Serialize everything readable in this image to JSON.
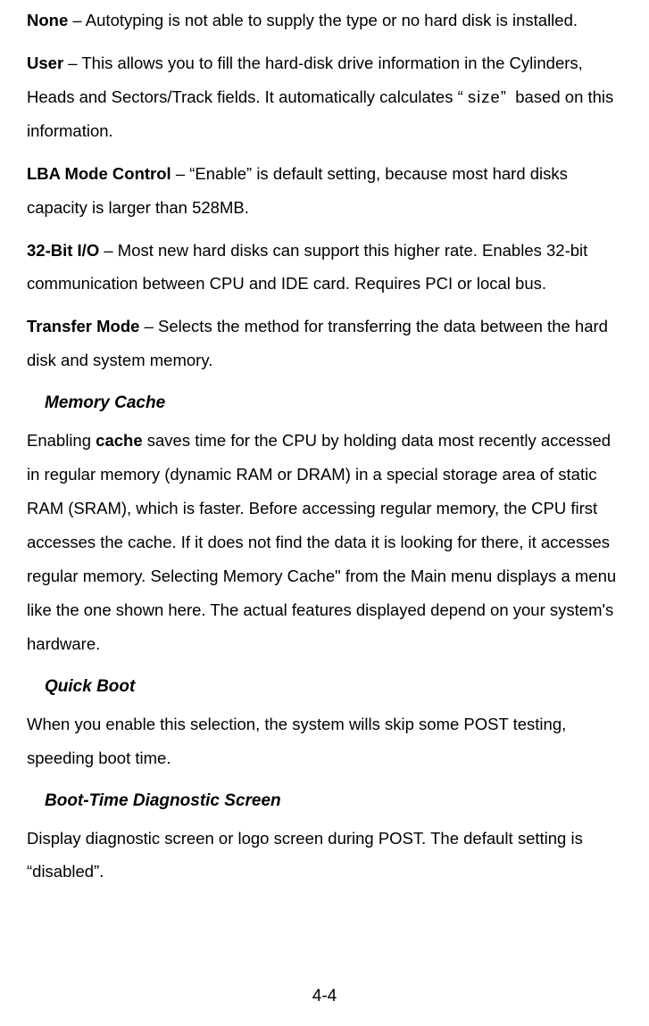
{
  "entries": {
    "none": {
      "label": "None",
      "text": " – Autotyping is not able to supply the type or no hard disk is installed."
    },
    "user": {
      "label": "User",
      "text_before": " – This allows you to fill the hard-disk drive information in the Cylinders, Heads and Sectors/Track fields. It automatically calculates “ ",
      "size_word": "size",
      "text_after": "”  based on this information."
    },
    "lba": {
      "label": "LBA Mode Control",
      "text": " – “Enable”  is default setting, because most hard disks capacity is larger than 528MB."
    },
    "io32": {
      "label": "32-Bit I/O",
      "text": " – Most new hard disks can support this higher rate. Enables 32-bit communication between CPU and IDE card. Requires PCI or local bus."
    },
    "transfer": {
      "label": "Transfer Mode",
      "text": " – Selects the method for transferring the data between the hard disk and system memory."
    }
  },
  "sections": {
    "memory_cache": {
      "heading": "Memory Cache",
      "text_before": "Enabling ",
      "bold_word": "cache",
      "text_after": " saves time for the CPU by holding data most recently accessed in regular memory (dynamic RAM or DRAM) in a special storage area of static RAM (SRAM), which is faster. Before accessing regular memory, the CPU first accesses the cache. If it does not find the data it is looking for there, it accesses regular memory. Selecting Memory Cache\" from the Main menu displays a menu like the one shown here. The actual features displayed depend on your system's hardware."
    },
    "quick_boot": {
      "heading": "Quick Boot",
      "text": "When you enable this selection, the system wills skip some POST testing, speeding boot time."
    },
    "boot_diag": {
      "heading": "Boot-Time Diagnostic Screen",
      "text": "Display diagnostic screen or logo screen during POST. The default setting is “disabled”."
    }
  },
  "page_number": "4-4",
  "colors": {
    "background": "#ffffff",
    "text": "#000000"
  },
  "typography": {
    "body_fontsize": 18.5,
    "heading_fontsize": 19,
    "line_height": 2.05,
    "font_family": "Arial"
  }
}
